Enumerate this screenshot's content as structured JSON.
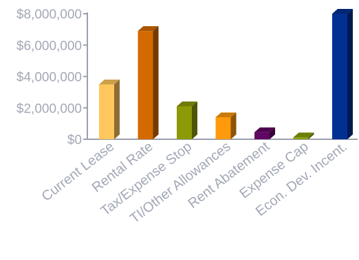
{
  "chart_data": {
    "type": "bar",
    "title": "",
    "xlabel": "",
    "ylabel": "",
    "categories": [
      "Current Lease",
      "Rental Rate",
      "Tax/Expense Stop",
      "TI/Other Allowances",
      "Rent Abatement",
      "Expense Cap",
      "Econ. Dev. Incent."
    ],
    "values": [
      3500000,
      6900000,
      2100000,
      1400000,
      450000,
      120000,
      8000000
    ],
    "colors": [
      "#ffc75c",
      "#d36a00",
      "#8c9a08",
      "#ff9a0c",
      "#610663",
      "#879f07",
      "#003091"
    ],
    "ylim": [
      0,
      8000000
    ],
    "yticks": [
      0,
      2000000,
      4000000,
      6000000,
      8000000
    ],
    "ytick_labels": [
      "$0",
      "$2,000,000",
      "$4,000,000",
      "$6,000,000",
      "$8,000,000"
    ],
    "grid": false,
    "legend": "none",
    "style": "3d-columns"
  }
}
